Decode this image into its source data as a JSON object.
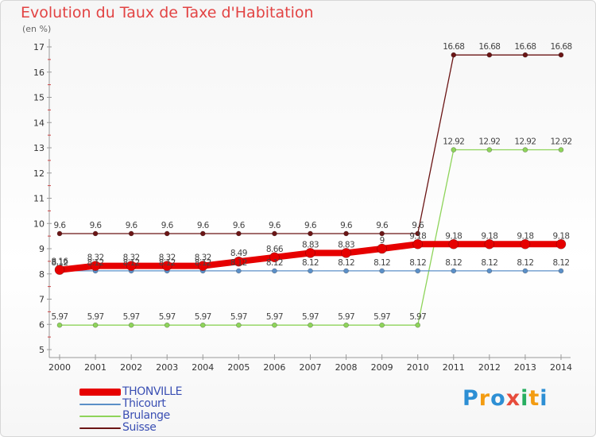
{
  "header": {
    "title": "Evolution du Taux de Taxe d'Habitation",
    "subtitle": "(en %)"
  },
  "brand": {
    "letters": [
      "P",
      "r",
      "o",
      "x",
      "i",
      "t",
      "i"
    ],
    "colors": [
      "#2d8fd4",
      "#f39c12",
      "#2d8fd4",
      "#e74c3c",
      "#27ae60",
      "#f39c12",
      "#2d8fd4"
    ]
  },
  "chart_data": {
    "type": "line",
    "title": "Evolution du Taux de Taxe d'Habitation",
    "ylabel": "(en %)",
    "xlabel": "",
    "x": [
      "2000",
      "2001",
      "2002",
      "2003",
      "2004",
      "2005",
      "2006",
      "2007",
      "2008",
      "2009",
      "2010",
      "2011",
      "2012",
      "2013",
      "2014"
    ],
    "ylim": [
      5,
      17
    ],
    "yticks": [
      "5",
      "6",
      "7",
      "8",
      "9",
      "10",
      "11",
      "12",
      "13",
      "14",
      "15",
      "16",
      "17"
    ],
    "grid": false,
    "legend_position": "bottom-left",
    "series": [
      {
        "name": "Suisse",
        "color": "#6b1515",
        "values": [
          9.6,
          9.6,
          9.6,
          9.6,
          9.6,
          9.6,
          9.6,
          9.6,
          9.6,
          9.6,
          9.6,
          16.68,
          16.68,
          16.68,
          16.68
        ],
        "labels": [
          "9.6",
          "9.6",
          "9.6",
          "9.6",
          "9.6",
          "9.6",
          "9.6",
          "9.6",
          "9.6",
          "9.6",
          "9.6",
          "16.68",
          "16.68",
          "16.68",
          "16.68"
        ]
      },
      {
        "name": "Brulange",
        "color": "#8ed45a",
        "values": [
          5.97,
          5.97,
          5.97,
          5.97,
          5.97,
          5.97,
          5.97,
          5.97,
          5.97,
          5.97,
          5.97,
          12.92,
          12.92,
          12.92,
          12.92
        ],
        "labels": [
          "5.97",
          "5.97",
          "5.97",
          "5.97",
          "5.97",
          "5.97",
          "5.97",
          "5.97",
          "5.97",
          "5.97",
          "5.97",
          "12.92",
          "12.92",
          "12.92",
          "12.92"
        ]
      },
      {
        "name": "Thicourt",
        "color": "#5b8fc7",
        "values": [
          8.12,
          8.12,
          8.12,
          8.12,
          8.12,
          8.12,
          8.12,
          8.12,
          8.12,
          8.12,
          8.12,
          8.12,
          8.12,
          8.12,
          8.12
        ],
        "labels": [
          "8.12",
          "8.12",
          "8.12",
          "8.12",
          "8.12",
          "8.12",
          "8.12",
          "8.12",
          "8.12",
          "8.12",
          "8.12",
          "8.12",
          "8.12",
          "8.12",
          "8.12"
        ]
      },
      {
        "name": "THONVILLE",
        "color": "#e60000",
        "values": [
          8.16,
          8.32,
          8.32,
          8.32,
          8.32,
          8.49,
          8.66,
          8.83,
          8.83,
          9,
          9.18,
          9.18,
          9.18,
          9.18,
          9.18
        ],
        "labels": [
          "8.16",
          "8.32",
          "8.32",
          "8.32",
          "8.32",
          "8.49",
          "8.66",
          "8.83",
          "8.83",
          "9",
          "9.18",
          "9.18",
          "9.18",
          "9.18",
          "9.18"
        ]
      }
    ]
  }
}
